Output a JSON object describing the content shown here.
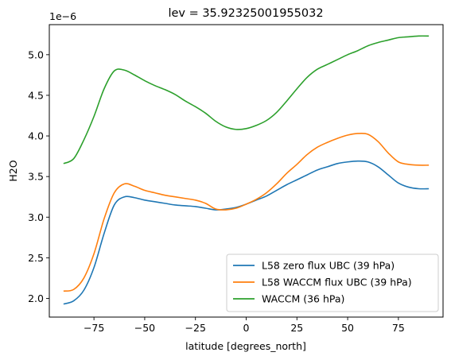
{
  "chart_data": {
    "type": "line",
    "title": "lev = 35.92325001955032",
    "xlabel": "latitude [degrees_north]",
    "ylabel": "H2O",
    "y_offset_text": "1e−6",
    "xlim": [
      -97,
      97
    ],
    "ylim": [
      1.77,
      5.37
    ],
    "x_ticks": [
      -75,
      -50,
      -25,
      0,
      25,
      50,
      75
    ],
    "x_tick_labels": [
      "−75",
      "−50",
      "−25",
      "0",
      "25",
      "50",
      "75"
    ],
    "y_ticks": [
      2.0,
      2.5,
      3.0,
      3.5,
      4.0,
      4.5,
      5.0
    ],
    "y_tick_labels": [
      "2.0",
      "2.5",
      "3.0",
      "3.5",
      "4.0",
      "4.5",
      "5.0"
    ],
    "grid": false,
    "legend_position": "lower-right",
    "series": [
      {
        "name": "L58 zero flux UBC (39 hPa)",
        "color": "#1f77b4",
        "x": [
          -90,
          -85,
          -80,
          -75,
          -70,
          -65,
          -60,
          -55,
          -50,
          -45,
          -40,
          -35,
          -30,
          -25,
          -20,
          -15,
          -10,
          -5,
          0,
          5,
          10,
          15,
          20,
          25,
          30,
          35,
          40,
          45,
          50,
          55,
          60,
          65,
          70,
          75,
          80,
          85,
          90
        ],
        "y": [
          1.93,
          1.97,
          2.1,
          2.38,
          2.8,
          3.15,
          3.25,
          3.24,
          3.21,
          3.19,
          3.17,
          3.15,
          3.14,
          3.13,
          3.11,
          3.09,
          3.1,
          3.12,
          3.16,
          3.21,
          3.26,
          3.33,
          3.4,
          3.46,
          3.52,
          3.58,
          3.62,
          3.66,
          3.68,
          3.69,
          3.68,
          3.62,
          3.52,
          3.42,
          3.37,
          3.35,
          3.35
        ]
      },
      {
        "name": "L58 WACCM flux UBC (39 hPa)",
        "color": "#ff7f0e",
        "x": [
          -90,
          -85,
          -80,
          -75,
          -70,
          -65,
          -60,
          -55,
          -50,
          -45,
          -40,
          -35,
          -30,
          -25,
          -20,
          -15,
          -10,
          -5,
          0,
          5,
          10,
          15,
          20,
          25,
          30,
          35,
          40,
          45,
          50,
          55,
          60,
          65,
          70,
          75,
          80,
          85,
          90
        ],
        "y": [
          2.09,
          2.11,
          2.25,
          2.55,
          2.98,
          3.3,
          3.41,
          3.38,
          3.33,
          3.3,
          3.27,
          3.25,
          3.23,
          3.21,
          3.17,
          3.1,
          3.09,
          3.11,
          3.16,
          3.22,
          3.3,
          3.41,
          3.54,
          3.65,
          3.77,
          3.86,
          3.92,
          3.97,
          4.01,
          4.03,
          4.02,
          3.93,
          3.79,
          3.68,
          3.65,
          3.64,
          3.64
        ]
      },
      {
        "name": "WACCM (36 hPa)",
        "color": "#2ca02c",
        "x": [
          -90,
          -85,
          -80,
          -75,
          -70,
          -65,
          -60,
          -55,
          -50,
          -45,
          -40,
          -35,
          -30,
          -25,
          -20,
          -15,
          -10,
          -5,
          0,
          5,
          10,
          15,
          20,
          25,
          30,
          35,
          40,
          45,
          50,
          55,
          60,
          65,
          70,
          75,
          80,
          85,
          90
        ],
        "y": [
          3.66,
          3.72,
          3.95,
          4.24,
          4.58,
          4.8,
          4.81,
          4.75,
          4.68,
          4.62,
          4.57,
          4.51,
          4.43,
          4.36,
          4.28,
          4.18,
          4.11,
          4.08,
          4.09,
          4.13,
          4.19,
          4.29,
          4.43,
          4.58,
          4.72,
          4.82,
          4.88,
          4.94,
          5.0,
          5.05,
          5.11,
          5.15,
          5.18,
          5.21,
          5.22,
          5.23,
          5.23
        ]
      }
    ]
  }
}
